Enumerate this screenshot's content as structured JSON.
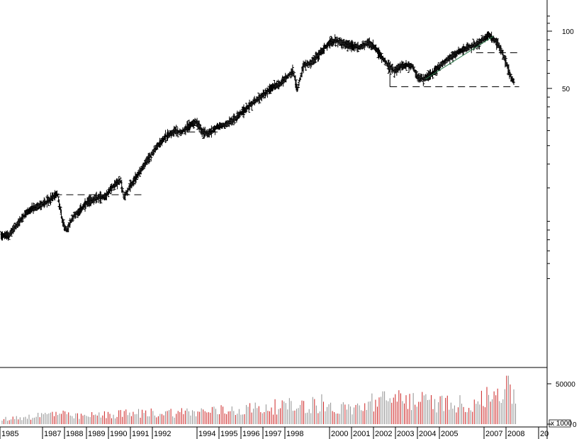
{
  "chart_data": [
    {
      "type": "ohlc",
      "scale": "log",
      "yticks": [
        "100",
        "50"
      ],
      "x_labels": [
        "1985",
        "1987",
        "1988",
        "1989",
        "1990",
        "1991",
        "1992",
        "1994",
        "1995",
        "1996",
        "1997",
        "1998",
        "2000",
        "2001",
        "2002",
        "2003",
        "2004",
        "2005",
        "2007",
        "2008",
        "20"
      ],
      "series_points": [
        [
          1984.95,
          8.5
        ],
        [
          1985.3,
          8.4
        ],
        [
          1985.7,
          9.6
        ],
        [
          1986.2,
          11.3
        ],
        [
          1986.7,
          12.0
        ],
        [
          1987.2,
          13.0
        ],
        [
          1987.55,
          14.1
        ],
        [
          1987.8,
          10.0
        ],
        [
          1988.0,
          8.9
        ],
        [
          1988.3,
          10.6
        ],
        [
          1988.7,
          11.7
        ],
        [
          1989.0,
          12.7
        ],
        [
          1989.5,
          13.4
        ],
        [
          1989.8,
          13.5
        ],
        [
          1990.2,
          15.6
        ],
        [
          1990.5,
          16.4
        ],
        [
          1990.65,
          13.4
        ],
        [
          1991.0,
          15.6
        ],
        [
          1991.3,
          17.5
        ],
        [
          1991.8,
          21.4
        ],
        [
          1992.3,
          25.6
        ],
        [
          1992.6,
          28.0
        ],
        [
          1993.0,
          30.0
        ],
        [
          1993.3,
          29.5
        ],
        [
          1993.7,
          32.0
        ],
        [
          1994.0,
          33.5
        ],
        [
          1994.3,
          29.5
        ],
        [
          1994.6,
          29.0
        ],
        [
          1995.0,
          31.5
        ],
        [
          1995.3,
          32.0
        ],
        [
          1995.7,
          34.0
        ],
        [
          1996.0,
          36.0
        ],
        [
          1996.4,
          40.0
        ],
        [
          1996.8,
          43.5
        ],
        [
          1997.2,
          47.0
        ],
        [
          1997.5,
          50.5
        ],
        [
          1997.8,
          52.0
        ],
        [
          1998.0,
          54.0
        ],
        [
          1998.3,
          58.5
        ],
        [
          1998.5,
          62.0
        ],
        [
          1998.7,
          49.0
        ],
        [
          1999.0,
          66.0
        ],
        [
          1999.4,
          69.0
        ],
        [
          1999.8,
          78.0
        ],
        [
          2000.2,
          87.0
        ],
        [
          2000.5,
          90.0
        ],
        [
          2000.8,
          86.0
        ],
        [
          2001.2,
          84.0
        ],
        [
          2001.6,
          82.0
        ],
        [
          2002.0,
          87.0
        ],
        [
          2002.3,
          82.0
        ],
        [
          2002.6,
          74.0
        ],
        [
          2002.9,
          66.0
        ],
        [
          2003.2,
          62.0
        ],
        [
          2003.6,
          66.0
        ],
        [
          2004.0,
          66.0
        ],
        [
          2004.3,
          57.0
        ],
        [
          2004.6,
          56.0
        ],
        [
          2005.0,
          60.0
        ],
        [
          2005.4,
          67.0
        ],
        [
          2005.8,
          73.0
        ],
        [
          2006.2,
          78.0
        ],
        [
          2006.6,
          82.0
        ],
        [
          2007.0,
          85.0
        ],
        [
          2007.3,
          90.0
        ],
        [
          2007.6,
          96.0
        ],
        [
          2007.85,
          90.0
        ],
        [
          2008.1,
          82.0
        ],
        [
          2008.4,
          68.0
        ],
        [
          2008.6,
          58.0
        ],
        [
          2008.75,
          54.0
        ]
      ],
      "support_lines": [
        {
          "from": 1987.45,
          "to": 1991.5,
          "y": 13.8
        },
        {
          "from": 1993.1,
          "to": 1995.0,
          "y": 29.5
        },
        {
          "from": 2003.0,
          "to": 2009.0,
          "y": 51.0
        },
        {
          "from": 2007.0,
          "to": 2009.0,
          "y": 77.0
        }
      ],
      "trend_line": {
        "from": [
          2004.65,
          56.0
        ],
        "to": [
          2007.8,
          94.0
        ],
        "color": "#2f7f4f"
      }
    },
    {
      "type": "bar",
      "yticks": [
        "50000",
        "0"
      ],
      "scale_label": "x 1000",
      "volume_range": [
        0,
        60000
      ],
      "bar_colors": {
        "up": "#909090",
        "down": "#cc2222"
      },
      "volume_profile": [
        [
          1985.0,
          6000
        ],
        [
          1986.5,
          10000
        ],
        [
          1987.7,
          14000
        ],
        [
          1988.2,
          9000
        ],
        [
          1990.0,
          12000
        ],
        [
          1992.0,
          14000
        ],
        [
          1994.0,
          15000
        ],
        [
          1996.0,
          18000
        ],
        [
          1998.0,
          22000
        ],
        [
          1999.5,
          24000
        ],
        [
          2000.5,
          19000
        ],
        [
          2001.5,
          20000
        ],
        [
          2002.5,
          28000
        ],
        [
          2003.2,
          32000
        ],
        [
          2004.0,
          30000
        ],
        [
          2005.0,
          26000
        ],
        [
          2006.0,
          25000
        ],
        [
          2007.0,
          26000
        ],
        [
          2007.8,
          34000
        ],
        [
          2008.4,
          45000
        ],
        [
          2008.8,
          35000
        ]
      ],
      "volume_spikes": [
        [
          2008.4,
          60000
        ],
        [
          2007.5,
          46000
        ],
        [
          2003.4,
          42000
        ],
        [
          2002.2,
          38000
        ],
        [
          1999.8,
          37000
        ],
        [
          2008.0,
          44000
        ]
      ]
    }
  ]
}
